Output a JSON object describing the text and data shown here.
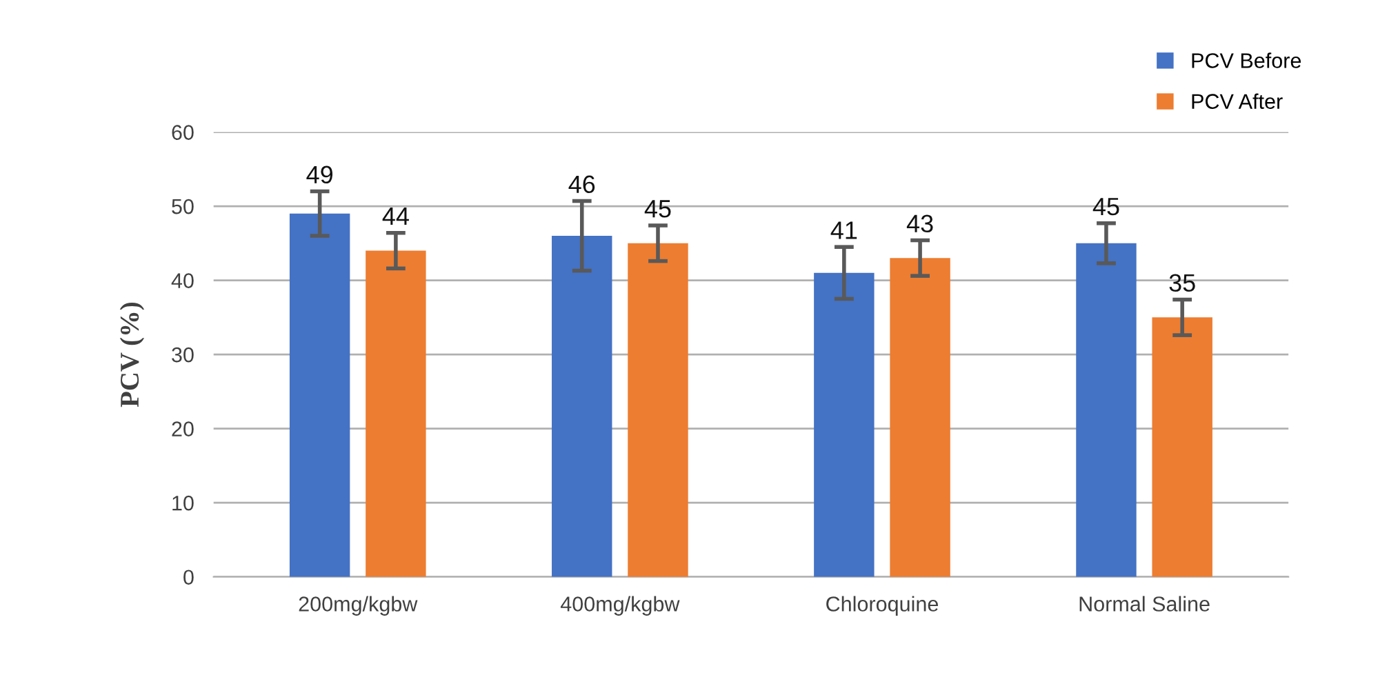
{
  "chart_data": {
    "type": "bar",
    "ylabel": "PCV (%)",
    "categories": [
      "200mg/kgbw",
      "400mg/kgbw",
      "Chloroquine",
      "Normal Saline"
    ],
    "series": [
      {
        "name": "PCV Before",
        "color": "#4472c4",
        "values": [
          49,
          46,
          41,
          45
        ],
        "errors": [
          3,
          4.7,
          3.5,
          2.7
        ]
      },
      {
        "name": "PCV After",
        "color": "#ed7d31",
        "values": [
          44,
          45,
          43,
          35
        ],
        "errors": [
          2.4,
          2.4,
          2.4,
          2.4
        ]
      }
    ],
    "ylim": [
      0,
      60
    ],
    "yticks": [
      0,
      10,
      20,
      30,
      40,
      50,
      60
    ],
    "grid": "y",
    "legend": "top right",
    "data_labels": true
  }
}
